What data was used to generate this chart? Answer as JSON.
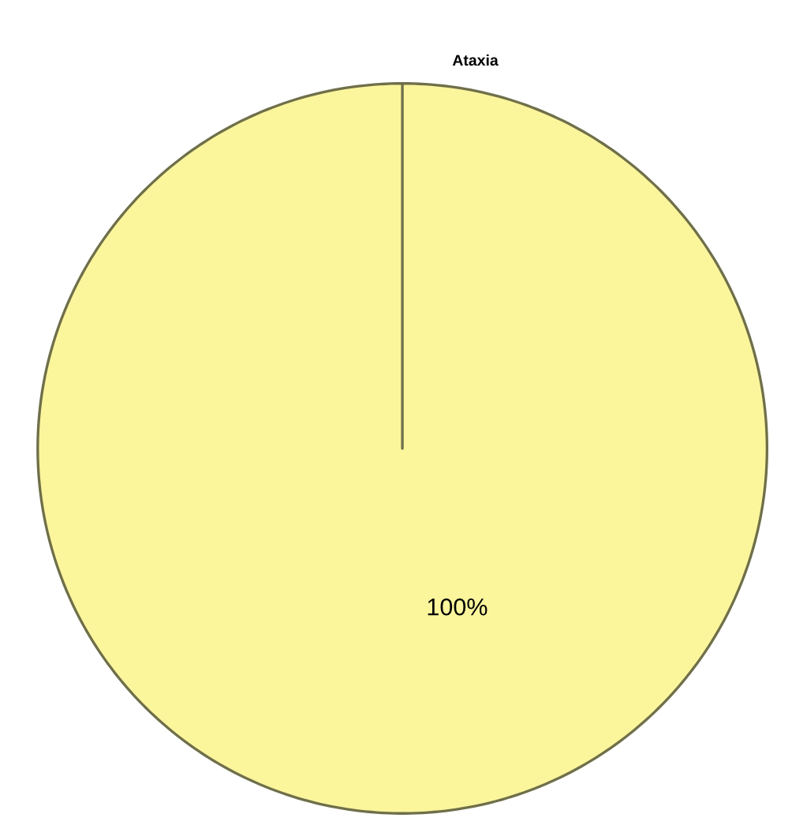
{
  "chart_data": {
    "type": "pie",
    "categories": [
      "Ataxia"
    ],
    "values": [
      100
    ],
    "colors": [
      "#fbf59c"
    ],
    "value_labels": [
      "100%"
    ]
  }
}
